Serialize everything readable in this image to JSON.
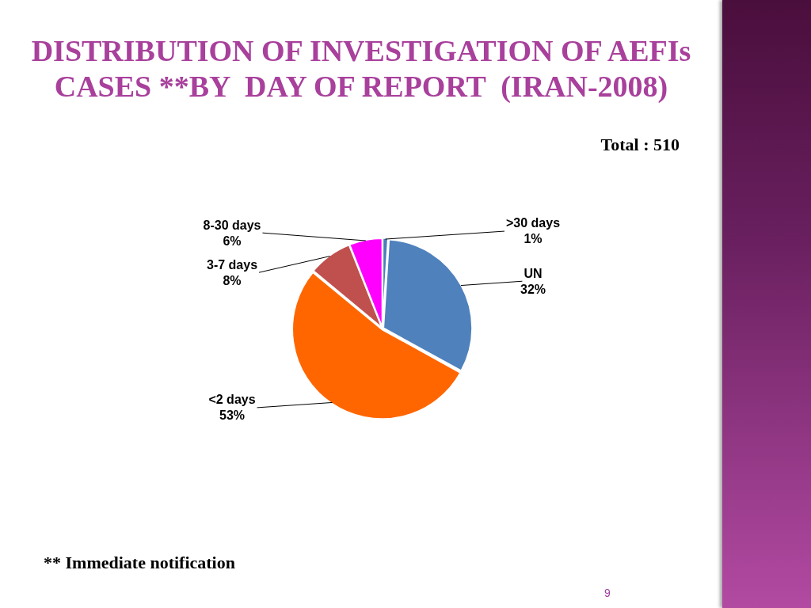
{
  "chart_data": {
    "type": "pie",
    "title": "DISTRIBUTION OF INVESTIGATION OF AEFIs\nCASES **BY  DAY OF REPORT  (IRAN-2008)",
    "categories": [
      ">30 days",
      "UN",
      "<2 days",
      "3-7 days",
      "8-30 days"
    ],
    "values": [
      1,
      32,
      53,
      8,
      6
    ],
    "colors": [
      "#4a7ebb",
      "#4f81bd",
      "#ff6600",
      "#c0504d",
      "#ff00ff"
    ],
    "value_labels": [
      "1%",
      "32%",
      "53%",
      "8%",
      "6%"
    ],
    "annotations": [
      "Total : 510",
      "** Immediate notification",
      "9"
    ],
    "legend": false
  }
}
